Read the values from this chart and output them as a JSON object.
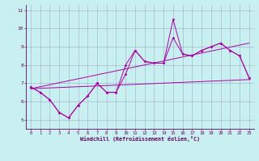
{
  "xlabel": "Windchill (Refroidissement éolien,°C)",
  "bg_color": "#c8f0f0",
  "line_color": "#aa00aa",
  "grid_color": "#9999bb",
  "xlim": [
    -0.5,
    23.5
  ],
  "ylim": [
    4.5,
    11.3
  ],
  "xticks": [
    0,
    1,
    2,
    3,
    4,
    5,
    6,
    7,
    8,
    9,
    10,
    11,
    12,
    13,
    14,
    15,
    16,
    17,
    18,
    19,
    20,
    21,
    22,
    23
  ],
  "yticks": [
    5,
    6,
    7,
    8,
    9,
    10,
    11
  ],
  "line1": [
    6.8,
    6.5,
    6.1,
    5.4,
    5.1,
    5.8,
    6.3,
    7.0,
    6.5,
    6.5,
    8.0,
    8.8,
    8.2,
    8.1,
    8.1,
    10.5,
    8.6,
    8.5,
    8.8,
    9.0,
    9.2,
    8.8,
    8.5,
    7.3
  ],
  "line2": [
    6.8,
    6.5,
    6.1,
    5.4,
    5.1,
    5.8,
    6.3,
    7.0,
    6.5,
    6.5,
    7.5,
    8.8,
    8.2,
    8.1,
    8.1,
    9.5,
    8.6,
    8.5,
    8.8,
    9.0,
    9.2,
    8.8,
    8.5,
    7.3
  ],
  "line3": [
    [
      0,
      6.7
    ],
    [
      23,
      7.2
    ]
  ],
  "line4": [
    [
      0,
      6.7
    ],
    [
      23,
      9.2
    ]
  ],
  "spine_color": "#660066",
  "tick_color": "#660066",
  "label_color": "#660066"
}
